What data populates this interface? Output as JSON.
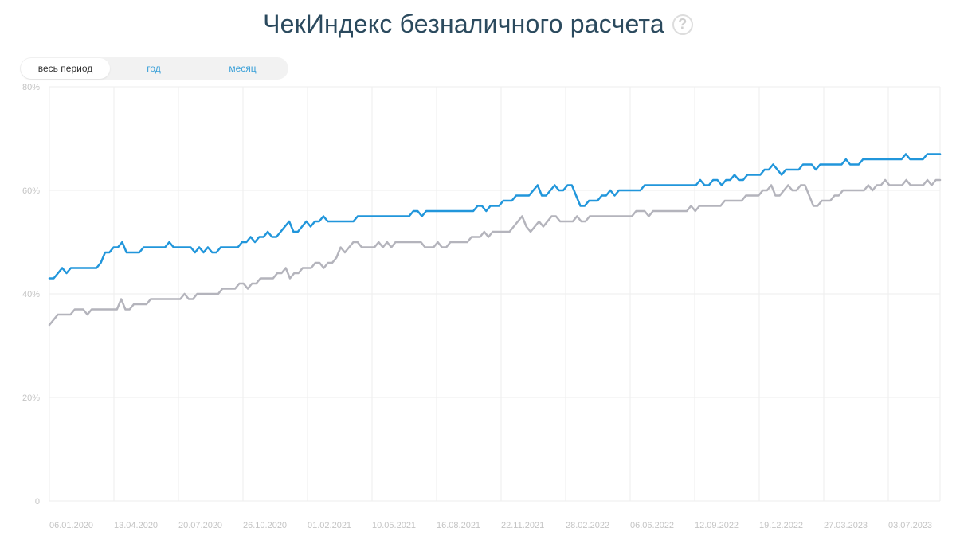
{
  "header": {
    "title": "ЧекИндекс безналичного расчета",
    "help_icon": "question-circle-icon"
  },
  "period_switch": {
    "options": [
      "весь период",
      "год",
      "месяц"
    ],
    "selected": "весь период"
  },
  "colors": {
    "series_1": "#2196db",
    "series_2": "#b4b4bc",
    "grid": "#eeeeee",
    "axis_text": "#c4c4c4"
  },
  "chart_data": {
    "type": "line",
    "title": "ЧекИндекс безналичного расчета",
    "xlabel": "",
    "ylabel": "",
    "ylim": [
      0,
      80
    ],
    "y_ticks": [
      {
        "value": 0,
        "label": "0"
      },
      {
        "value": 20,
        "label": "20%"
      },
      {
        "value": 40,
        "label": "40%"
      },
      {
        "value": 60,
        "label": "60%"
      },
      {
        "value": 80,
        "label": "80%"
      }
    ],
    "x_ticks": [
      "06.01.2020",
      "13.04.2020",
      "20.07.2020",
      "26.10.2020",
      "01.02.2021",
      "10.05.2021",
      "16.08.2021",
      "22.11.2021",
      "28.02.2022",
      "06.06.2022",
      "12.09.2022",
      "19.12.2022",
      "27.03.2023",
      "03.07.2023"
    ],
    "x_start": "06.01.2020",
    "x_end": "07.08.2023",
    "grid": true,
    "legend": "none",
    "series": [
      {
        "color": "#2196db",
        "values": [
          43,
          43,
          44,
          45,
          44,
          45,
          45,
          45,
          45,
          45,
          45,
          45,
          46,
          48,
          48,
          49,
          49,
          50,
          48,
          48,
          48,
          48,
          49,
          49,
          49,
          49,
          49,
          49,
          50,
          49,
          49,
          49,
          49,
          49,
          48,
          49,
          48,
          49,
          48,
          48,
          49,
          49,
          49,
          49,
          49,
          50,
          50,
          51,
          50,
          51,
          51,
          52,
          51,
          51,
          52,
          53,
          54,
          52,
          52,
          53,
          54,
          53,
          54,
          54,
          55,
          54,
          54,
          54,
          54,
          54,
          54,
          54,
          55,
          55,
          55,
          55,
          55,
          55,
          55,
          55,
          55,
          55,
          55,
          55,
          55,
          56,
          56,
          55,
          56,
          56,
          56,
          56,
          56,
          56,
          56,
          56,
          56,
          56,
          56,
          56,
          57,
          57,
          56,
          57,
          57,
          57,
          58,
          58,
          58,
          59,
          59,
          59,
          59,
          60,
          61,
          59,
          59,
          60,
          61,
          60,
          60,
          61,
          61,
          59,
          57,
          57,
          58,
          58,
          58,
          59,
          59,
          60,
          59,
          60,
          60,
          60,
          60,
          60,
          60,
          61,
          61,
          61,
          61,
          61,
          61,
          61,
          61,
          61,
          61,
          61,
          61,
          61,
          62,
          61,
          61,
          62,
          62,
          61,
          62,
          62,
          63,
          62,
          62,
          63,
          63,
          63,
          63,
          64,
          64,
          65,
          64,
          63,
          64,
          64,
          64,
          64,
          65,
          65,
          65,
          64,
          65,
          65,
          65,
          65,
          65,
          65,
          66,
          65,
          65,
          65,
          66,
          66,
          66,
          66,
          66,
          66,
          66,
          66,
          66,
          66,
          67,
          66,
          66,
          66,
          66,
          67,
          67,
          67,
          67
        ]
      },
      {
        "color": "#b4b4bc",
        "values": [
          34,
          35,
          36,
          36,
          36,
          36,
          37,
          37,
          37,
          36,
          37,
          37,
          37,
          37,
          37,
          37,
          37,
          39,
          37,
          37,
          38,
          38,
          38,
          38,
          39,
          39,
          39,
          39,
          39,
          39,
          39,
          39,
          40,
          39,
          39,
          40,
          40,
          40,
          40,
          40,
          40,
          41,
          41,
          41,
          41,
          42,
          42,
          41,
          42,
          42,
          43,
          43,
          43,
          43,
          44,
          44,
          45,
          43,
          44,
          44,
          45,
          45,
          45,
          46,
          46,
          45,
          46,
          46,
          47,
          49,
          48,
          49,
          50,
          50,
          49,
          49,
          49,
          49,
          50,
          49,
          50,
          49,
          50,
          50,
          50,
          50,
          50,
          50,
          50,
          49,
          49,
          49,
          50,
          49,
          49,
          50,
          50,
          50,
          50,
          50,
          51,
          51,
          51,
          52,
          51,
          52,
          52,
          52,
          52,
          52,
          53,
          54,
          55,
          53,
          52,
          53,
          54,
          53,
          54,
          55,
          55,
          54,
          54,
          54,
          54,
          55,
          54,
          54,
          55,
          55,
          55,
          55,
          55,
          55,
          55,
          55,
          55,
          55,
          55,
          56,
          56,
          56,
          55,
          56,
          56,
          56,
          56,
          56,
          56,
          56,
          56,
          56,
          57,
          56,
          57,
          57,
          57,
          57,
          57,
          57,
          58,
          58,
          58,
          58,
          58,
          59,
          59,
          59,
          59,
          60,
          60,
          61,
          59,
          59,
          60,
          61,
          60,
          60,
          61,
          61,
          59,
          57,
          57,
          58,
          58,
          58,
          59,
          59,
          60,
          60,
          60,
          60,
          60,
          60,
          61,
          60,
          61,
          61,
          62,
          61,
          61,
          61,
          61,
          62,
          61,
          61,
          61,
          61,
          62,
          61,
          62,
          62
        ]
      }
    ]
  }
}
